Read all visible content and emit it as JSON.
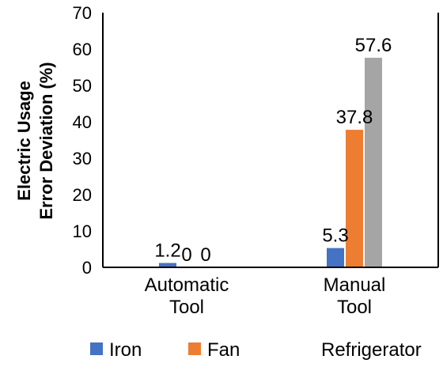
{
  "chart_data": {
    "type": "bar",
    "categories": [
      [
        "Automatic",
        "Tool"
      ],
      [
        "Manual",
        "Tool"
      ]
    ],
    "series": [
      {
        "name": "Iron",
        "values": [
          1.2,
          5.3
        ],
        "color": "#4472C4"
      },
      {
        "name": "Fan",
        "values": [
          0,
          37.8
        ],
        "color": "#ED7D31"
      },
      {
        "name": "Refrigerator",
        "values": [
          0,
          57.6
        ],
        "color": "#A5A5A5"
      }
    ],
    "ylabel": [
      "Electric Usage",
      "Error Deviation (%)"
    ],
    "ylim": [
      0,
      70
    ],
    "yticks": [
      0,
      10,
      20,
      30,
      40,
      50,
      60,
      70
    ],
    "grid": false,
    "legend_position": "bottom"
  }
}
